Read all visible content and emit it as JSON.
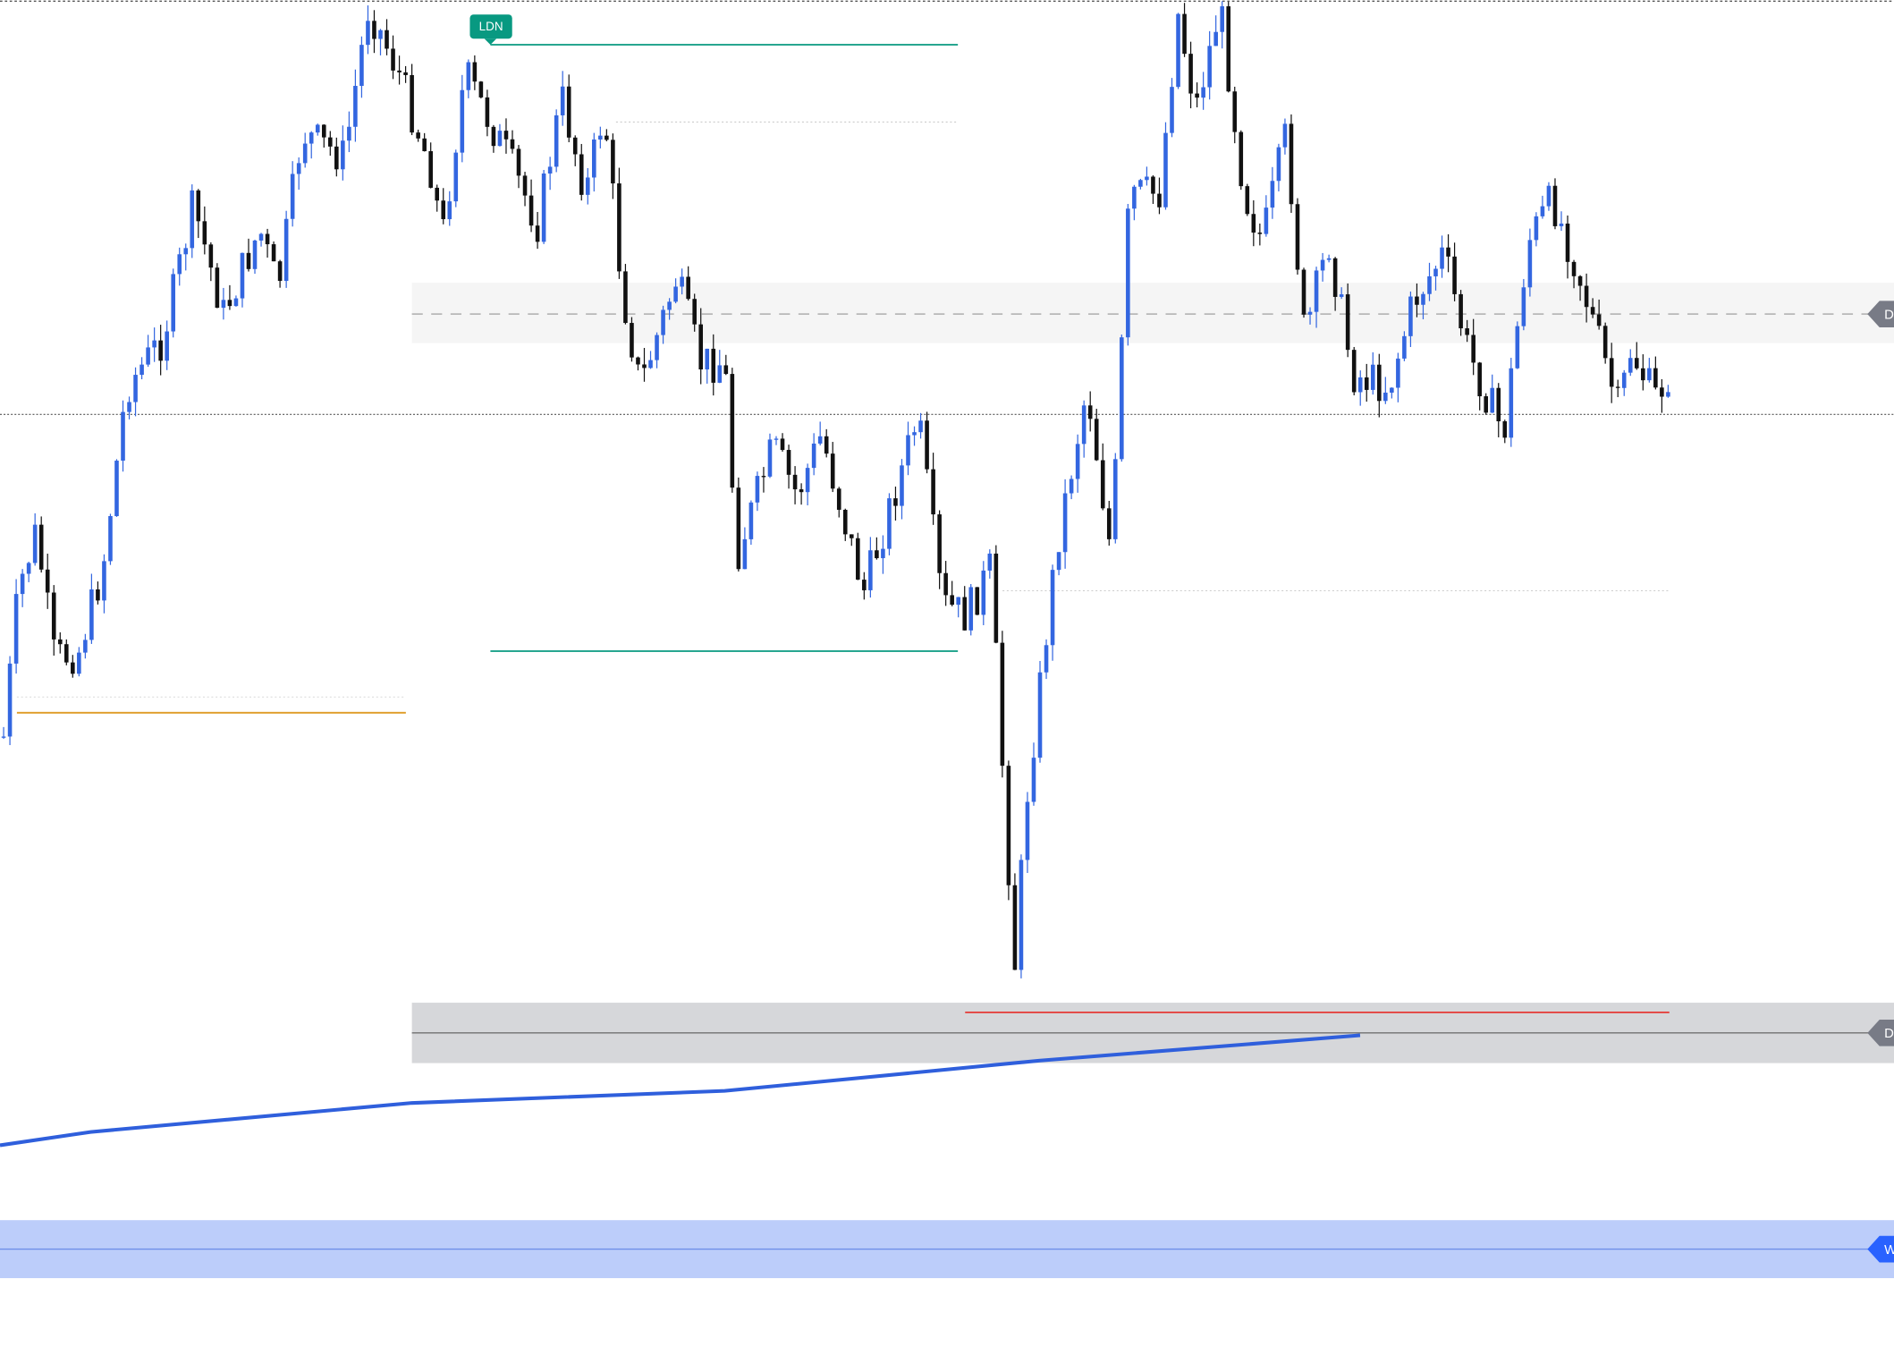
{
  "tags": {
    "session": "LDN",
    "upper_zone": "D",
    "lower_zone": "D",
    "weekly_zone": "W"
  }
}
